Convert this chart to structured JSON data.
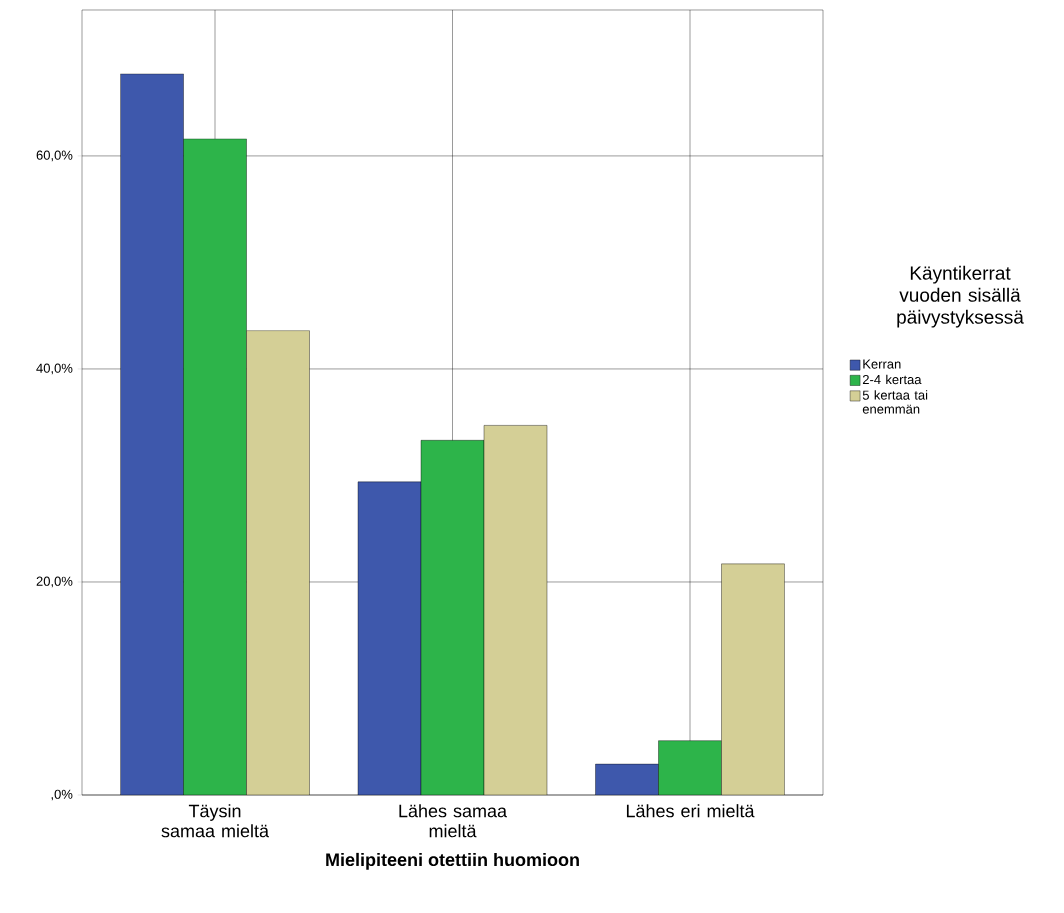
{
  "chart_data": {
    "type": "bar",
    "xlabel": "Mielipiteeni otettiin huomioon",
    "legend_title": "Käyntikerrat vuoden sisällä päivystyksessä",
    "categories": [
      "Täysin samaa mieltä",
      "Lähes samaa mieltä",
      "Lähes eri mieltä"
    ],
    "series": [
      {
        "name": "Kerran",
        "color": "#3e58ac",
        "values": [
          67.7,
          29.4,
          2.9
        ]
      },
      {
        "name": "2-4 kertaa",
        "color": "#2db44a",
        "values": [
          61.6,
          33.3,
          5.1
        ]
      },
      {
        "name": "5 kertaa tai enemmän",
        "color": "#d4cf96",
        "values": [
          43.6,
          34.7,
          21.7
        ]
      }
    ],
    "ylim": [
      0,
      73.7
    ],
    "yticks": [
      {
        "value": 0,
        "label": ",0%"
      },
      {
        "value": 20,
        "label": "20,0%"
      },
      {
        "value": 40,
        "label": "40,0%"
      },
      {
        "value": 60,
        "label": "60,0%"
      }
    ],
    "grid": true,
    "legend": "right"
  }
}
